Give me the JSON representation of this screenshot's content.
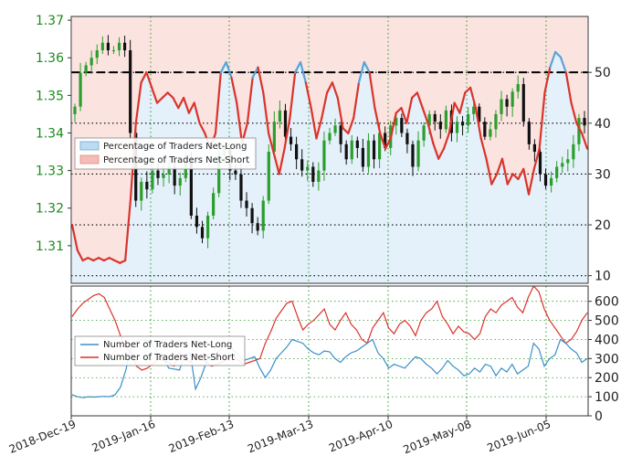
{
  "chart_data": [
    {
      "type": "candlestick+line",
      "title": "",
      "left_axis": {
        "ticks": [
          "1.31",
          "1.32",
          "1.33",
          "1.34",
          "1.35",
          "1.36",
          "1.37"
        ],
        "range": [
          1.3,
          1.371
        ]
      },
      "right_axis": {
        "ticks": [
          "10",
          "20",
          "30",
          "40",
          "50"
        ],
        "range": [
          8.5,
          61
        ]
      },
      "reference_line_pct": 50,
      "legend": {
        "placement": "left-middle",
        "entries": [
          "Percentage of Traders Net-Long",
          "Percentage of Traders Net-Short"
        ]
      },
      "price_close_series": [
        1.347,
        1.356,
        1.358,
        1.36,
        1.362,
        1.364,
        1.362,
        1.362,
        1.364,
        1.362,
        1.34,
        1.322,
        1.327,
        1.325,
        1.33,
        1.328,
        1.329,
        1.331,
        1.326,
        1.328,
        1.333,
        1.318,
        1.315,
        1.312,
        1.318,
        1.324,
        1.334,
        1.336,
        1.33,
        1.329,
        1.322,
        1.32,
        1.316,
        1.314,
        1.322,
        1.335,
        1.343,
        1.346,
        1.339,
        1.337,
        1.333,
        1.33,
        1.331,
        1.327,
        1.33,
        1.338,
        1.34,
        1.342,
        1.337,
        1.333,
        1.338,
        1.336,
        1.331,
        1.338,
        1.333,
        1.34,
        1.336,
        1.342,
        1.344,
        1.34,
        1.337,
        1.331,
        1.338,
        1.342,
        1.345,
        1.343,
        1.341,
        1.346,
        1.34,
        1.343,
        1.342,
        1.345,
        1.347,
        1.343,
        1.339,
        1.341,
        1.345,
        1.349,
        1.347,
        1.351,
        1.353,
        1.343,
        1.337,
        1.335,
        1.329,
        1.326,
        1.328,
        1.331,
        1.332,
        1.333,
        1.337,
        1.344,
        1.342
      ],
      "net_long_pct": [
        20,
        15,
        13,
        13.5,
        13,
        13.5,
        13,
        13.5,
        13,
        12.5,
        13,
        25,
        40,
        48,
        50,
        47,
        44,
        45,
        46,
        45,
        43,
        45,
        42,
        44,
        40,
        38,
        35,
        38,
        50,
        52,
        49,
        44,
        36,
        40,
        49,
        51,
        46,
        38,
        34,
        30,
        35,
        41,
        50,
        52,
        48,
        43,
        37,
        41,
        46,
        48,
        45,
        39,
        38,
        41,
        48,
        52,
        50,
        43,
        38,
        35,
        37,
        42,
        43,
        40,
        45,
        46,
        43,
        40,
        36,
        33,
        35,
        38,
        44,
        42,
        46,
        47,
        43,
        37,
        33,
        28,
        30,
        33,
        28,
        30,
        29,
        31,
        26,
        31,
        35,
        46,
        51,
        54,
        53,
        50,
        44,
        40,
        38,
        35
      ],
      "series_labels": [
        "Percentage of Traders Net-Long",
        "Percentage of Traders Net-Short"
      ]
    },
    {
      "type": "line",
      "right_axis": {
        "ticks": [
          "0",
          "100",
          "200",
          "300",
          "400",
          "500",
          "600"
        ],
        "range": [
          0,
          680
        ]
      },
      "legend": {
        "placement": "left-middle",
        "entries": [
          "Number of Traders Net-Long",
          "Number of Traders Net-Short"
        ]
      },
      "net_long": [
        110,
        100,
        95,
        100,
        98,
        100,
        102,
        100,
        110,
        150,
        240,
        360,
        390,
        400,
        395,
        370,
        330,
        300,
        250,
        245,
        240,
        320,
        330,
        140,
        200,
        280,
        310,
        330,
        360,
        380,
        345,
        320,
        290,
        300,
        310,
        250,
        200,
        240,
        300,
        330,
        360,
        400,
        390,
        380,
        350,
        330,
        320,
        340,
        335,
        300,
        280,
        310,
        330,
        340,
        360,
        380,
        400,
        330,
        300,
        250,
        270,
        260,
        250,
        280,
        310,
        300,
        270,
        250,
        220,
        250,
        290,
        260,
        240,
        210,
        220,
        250,
        230,
        270,
        260,
        210,
        250,
        230,
        270,
        220,
        240,
        260,
        380,
        350,
        260,
        300,
        320,
        400,
        380,
        350,
        330,
        280,
        300
      ],
      "net_short": [
        520,
        560,
        590,
        610,
        630,
        640,
        620,
        560,
        500,
        420,
        360,
        330,
        260,
        240,
        250,
        270,
        300,
        290,
        280,
        260,
        330,
        300,
        280,
        330,
        300,
        280,
        260,
        270,
        280,
        300,
        310,
        290,
        270,
        280,
        290,
        300,
        380,
        440,
        510,
        550,
        590,
        600,
        520,
        450,
        480,
        500,
        530,
        560,
        480,
        450,
        500,
        540,
        480,
        450,
        400,
        380,
        460,
        500,
        540,
        460,
        430,
        480,
        500,
        470,
        420,
        500,
        540,
        560,
        600,
        520,
        480,
        430,
        470,
        440,
        430,
        400,
        430,
        520,
        560,
        540,
        580,
        600,
        620,
        570,
        540,
        620,
        680,
        650,
        560,
        500,
        460,
        420,
        380,
        400,
        440,
        500,
        540
      ]
    }
  ],
  "x_axis": {
    "tick_labels": [
      "2018-Dec-19",
      "2019-Jan-16",
      "2019-Feb-13",
      "2019-Mar-13",
      "2019-Apr-10",
      "2019-May-08",
      "2019-Jun-05"
    ]
  },
  "colors": {
    "price_axis": "#1f8a1f",
    "net_long": "#3a8fc8",
    "net_short": "#d9342b",
    "net_long_fill": "#d2e6f6",
    "net_short_fill": "#f8d0cc",
    "candle_up": "#2b9e2b",
    "candle_down": "#111111"
  }
}
